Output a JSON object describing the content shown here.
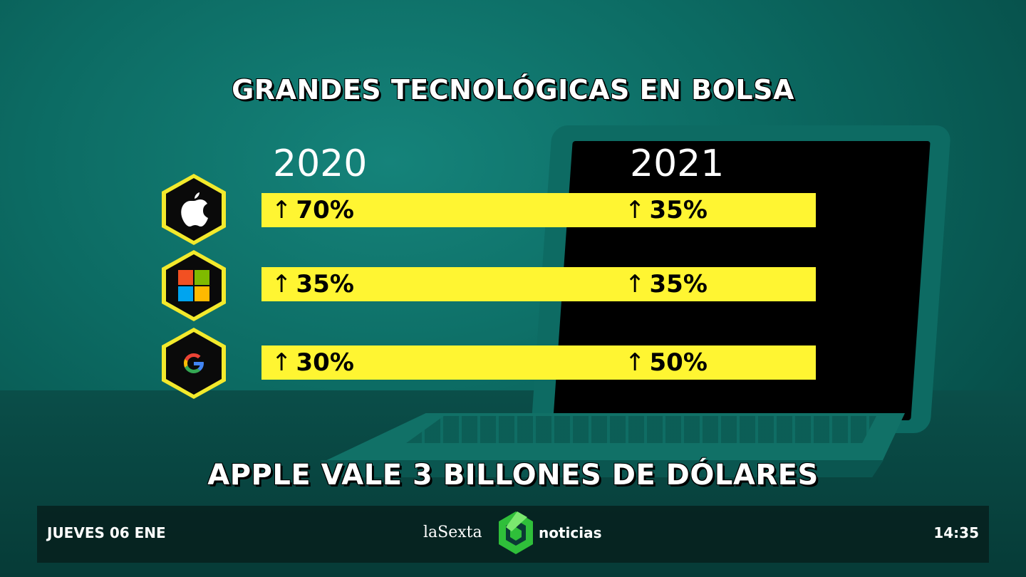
{
  "graphic": {
    "title": "GRANDES TECNOLÓGICAS EN BOLSA",
    "year_left": "2020",
    "year_right": "2021",
    "headline": "APPLE VALE 3 BILLONES DE DÓLARES",
    "rows": [
      {
        "company_icon": "apple-logo-icon",
        "arrow": "↑",
        "v2020": "70%",
        "v2021": "35%"
      },
      {
        "company_icon": "microsoft-logo-icon",
        "arrow": "↑",
        "v2020": "35%",
        "v2021": "35%"
      },
      {
        "company_icon": "google-logo-icon",
        "arrow": "↑",
        "v2020": "30%",
        "v2021": "50%"
      }
    ],
    "colors": {
      "bar": "#fff532",
      "hex_border": "#f3ea2c",
      "background": "#0c6b63"
    }
  },
  "ticker": {
    "date": "JUEVES 06 ENE",
    "brand_left": "laSexta",
    "brand_right": "noticias",
    "time": "14:35"
  }
}
